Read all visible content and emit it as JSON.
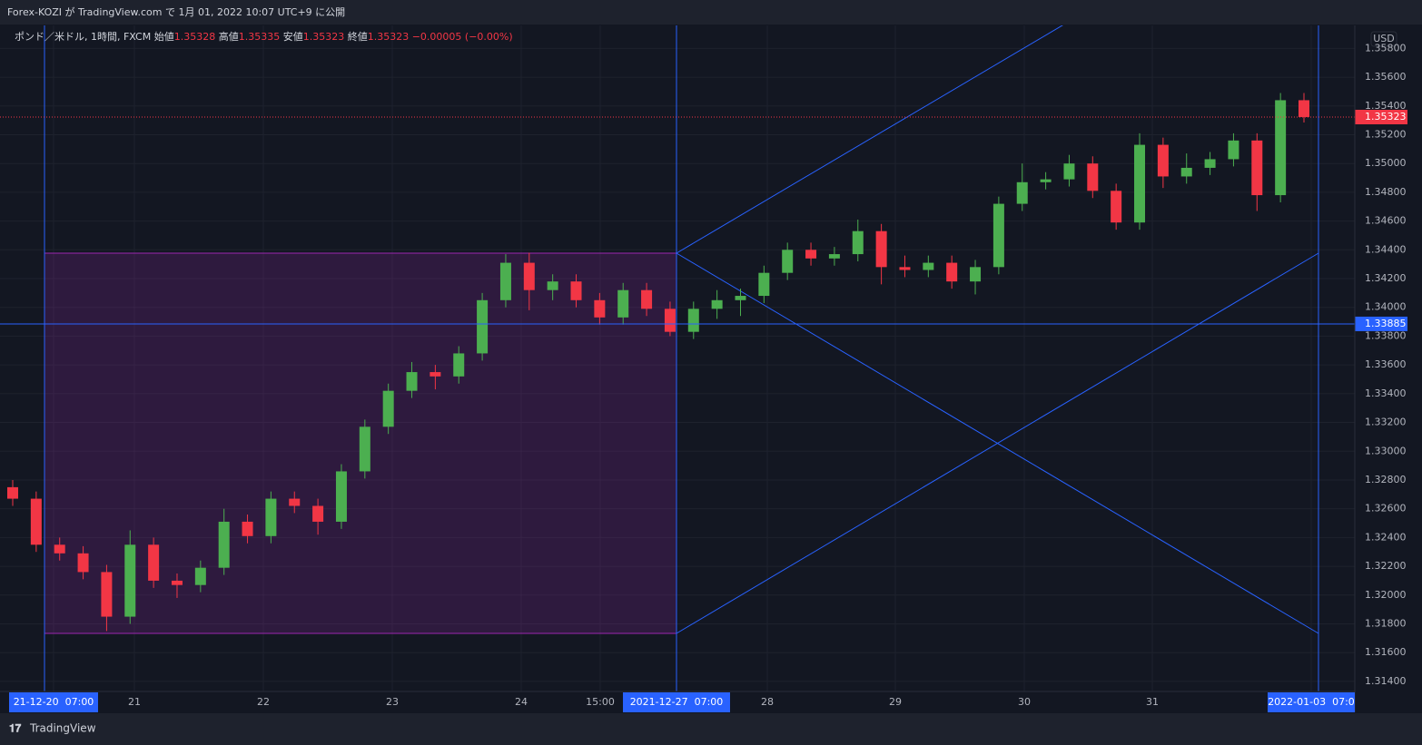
{
  "header": {
    "title": "Forex-KOZI が TradingView.com で 1月 01, 2022 10:07 UTC+9 に公開"
  },
  "footer": {
    "brand": "TradingView"
  },
  "chart_data": {
    "type": "candlestick",
    "symbol": "ポンド／米ドル, 1時間, FXCM",
    "legend": [
      {
        "label": "始値",
        "value": 1.35328
      },
      {
        "label": "高値",
        "value": 1.35335
      },
      {
        "label": "安値",
        "value": 1.35323
      },
      {
        "label": "終値",
        "value": 1.35323
      }
    ],
    "change": "−0.00005 (−0.00%)",
    "currency": "USD",
    "up_color": "#4caf50",
    "down_color": "#f23645",
    "open": [
      1.3275,
      1.3267,
      1.3235,
      1.3229,
      1.3216,
      1.3185,
      1.3235,
      1.321,
      1.3207,
      1.3219,
      1.3251,
      1.3241,
      1.3267,
      1.3262,
      1.3251,
      1.3286,
      1.3317,
      1.3342,
      1.3355,
      1.3352,
      1.3368,
      1.3405,
      1.3431,
      1.3412,
      1.3418,
      1.3405,
      1.3393,
      1.3412,
      1.3399,
      1.3383,
      1.3399,
      1.3405,
      1.3408,
      1.3424,
      1.344,
      1.3434,
      1.3437,
      1.3453,
      1.3428,
      1.3426,
      1.3431,
      1.3418,
      1.3428,
      1.3472,
      1.3487,
      1.3489,
      1.35,
      1.3481,
      1.3459,
      1.3513,
      1.3491,
      1.3497,
      1.3503,
      1.3516,
      1.3478,
      1.3544
    ],
    "high": [
      1.328,
      1.3272,
      1.324,
      1.3234,
      1.3221,
      1.3245,
      1.324,
      1.3215,
      1.3224,
      1.326,
      1.3256,
      1.3272,
      1.3272,
      1.3267,
      1.3291,
      1.3322,
      1.3347,
      1.3362,
      1.336,
      1.3373,
      1.341,
      1.3437,
      1.3438,
      1.3423,
      1.3423,
      1.341,
      1.3417,
      1.3417,
      1.3404,
      1.3404,
      1.3412,
      1.3413,
      1.3429,
      1.3445,
      1.3445,
      1.3442,
      1.3461,
      1.3458,
      1.3436,
      1.3436,
      1.3436,
      1.3433,
      1.3477,
      1.35,
      1.3494,
      1.3506,
      1.3505,
      1.3486,
      1.3521,
      1.3518,
      1.3507,
      1.3508,
      1.3521,
      1.3521,
      1.3549,
      1.3549
    ],
    "low": [
      1.3262,
      1.323,
      1.3224,
      1.3211,
      1.3175,
      1.318,
      1.3205,
      1.3198,
      1.3202,
      1.3214,
      1.3236,
      1.3236,
      1.3257,
      1.3242,
      1.3246,
      1.3281,
      1.3312,
      1.3337,
      1.3343,
      1.3347,
      1.3363,
      1.34,
      1.3398,
      1.3405,
      1.34,
      1.3388,
      1.3388,
      1.3394,
      1.338,
      1.3378,
      1.3392,
      1.3394,
      1.3403,
      1.3419,
      1.3429,
      1.3429,
      1.3432,
      1.3416,
      1.3421,
      1.3421,
      1.3413,
      1.3409,
      1.3423,
      1.3467,
      1.3482,
      1.3484,
      1.3476,
      1.3454,
      1.3454,
      1.3483,
      1.3486,
      1.3492,
      1.3498,
      1.3467,
      1.3473,
      1.35285
    ],
    "close": [
      1.3267,
      1.3235,
      1.3229,
      1.3216,
      1.3185,
      1.3235,
      1.321,
      1.3207,
      1.3219,
      1.3251,
      1.3241,
      1.3267,
      1.3262,
      1.3251,
      1.3286,
      1.3317,
      1.3342,
      1.3355,
      1.3352,
      1.3368,
      1.3405,
      1.3431,
      1.3412,
      1.3418,
      1.3405,
      1.3393,
      1.3412,
      1.3399,
      1.3383,
      1.3399,
      1.3405,
      1.3408,
      1.3424,
      1.344,
      1.3434,
      1.3437,
      1.3453,
      1.3428,
      1.3426,
      1.3431,
      1.3418,
      1.3428,
      1.3472,
      1.3487,
      1.3489,
      1.35,
      1.3481,
      1.3459,
      1.3513,
      1.3491,
      1.3497,
      1.3503,
      1.3516,
      1.3478,
      1.3544,
      1.35323
    ],
    "ylim": [
      1.3133,
      1.3596
    ],
    "yticks": [
      {
        "value": 1.358,
        "label": "1.35800"
      },
      {
        "value": 1.356,
        "label": "1.35600"
      },
      {
        "value": 1.354,
        "label": "1.35400"
      },
      {
        "value": 1.352,
        "label": "1.35200"
      },
      {
        "value": 1.35,
        "label": "1.35000"
      },
      {
        "value": 1.348,
        "label": "1.34800"
      },
      {
        "value": 1.346,
        "label": "1.34600"
      },
      {
        "value": 1.344,
        "label": "1.34400"
      },
      {
        "value": 1.342,
        "label": "1.34200"
      },
      {
        "value": 1.34,
        "label": "1.34000"
      },
      {
        "value": 1.338,
        "label": "1.33800"
      },
      {
        "value": 1.336,
        "label": "1.33600"
      },
      {
        "value": 1.334,
        "label": "1.33400"
      },
      {
        "value": 1.332,
        "label": "1.33200"
      },
      {
        "value": 1.33,
        "label": "1.33000"
      },
      {
        "value": 1.328,
        "label": "1.32800"
      },
      {
        "value": 1.326,
        "label": "1.32600"
      },
      {
        "value": 1.324,
        "label": "1.32400"
      },
      {
        "value": 1.322,
        "label": "1.32200"
      },
      {
        "value": 1.32,
        "label": "1.32000"
      },
      {
        "value": 1.318,
        "label": "1.31800"
      },
      {
        "value": 1.316,
        "label": "1.31600"
      },
      {
        "value": 1.314,
        "label": "1.31400"
      }
    ],
    "xticks": [
      "21-12-20  07:00",
      "21",
      "22",
      "23",
      "24",
      "15:00",
      "2021-12-27  07:00",
      "28",
      "29",
      "30",
      "31",
      "2022-01-03  07:0"
    ],
    "last_price": 1.35323,
    "hline_price": 1.33885,
    "grid": true
  }
}
